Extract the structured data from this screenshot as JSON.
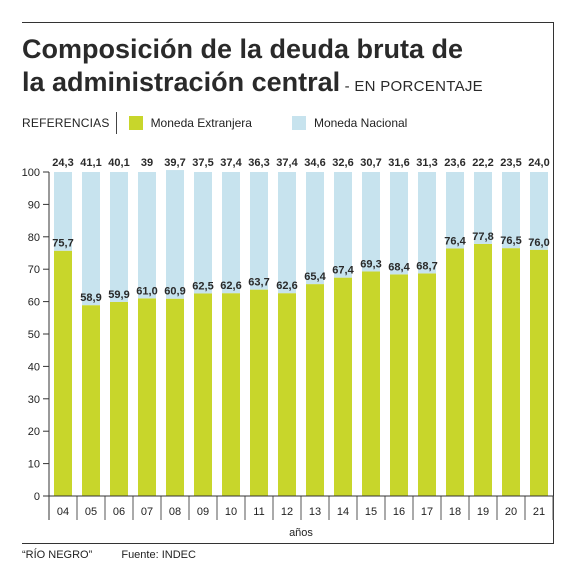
{
  "header": {
    "title_line1": "Composición de la deuda bruta de",
    "title_line2": "la administración central",
    "title_suffix": " - EN PORCENTAJE"
  },
  "legend": {
    "label": "REFERENCIAS",
    "items": [
      {
        "name": "Moneda Extranjera",
        "color": "#c8d62b"
      },
      {
        "name": "Moneda Nacional",
        "color": "#c7e3ee"
      }
    ]
  },
  "footer": {
    "source_outlet": "“RÍO NEGRO”",
    "source": "Fuente: INDEC"
  },
  "chart_data": {
    "type": "bar",
    "stacked": true,
    "title": "Composición de la deuda bruta de la administración central - EN PORCENTAJE",
    "xlabel": "años",
    "ylabel": "",
    "ylim": [
      0,
      100
    ],
    "yticks": [
      0,
      10,
      20,
      30,
      40,
      50,
      60,
      70,
      80,
      90,
      100
    ],
    "categories": [
      "04",
      "05",
      "06",
      "07",
      "08",
      "09",
      "10",
      "11",
      "12",
      "13",
      "14",
      "15",
      "16",
      "17",
      "18",
      "19",
      "20",
      "21"
    ],
    "series": [
      {
        "name": "Moneda Extranjera",
        "color": "#c8d62b",
        "values": [
          75.7,
          58.9,
          59.9,
          61.0,
          60.9,
          62.5,
          62.6,
          63.7,
          62.6,
          65.4,
          67.4,
          69.3,
          68.4,
          68.7,
          76.4,
          77.8,
          76.5,
          76.0
        ],
        "labels": [
          "75,7",
          "58,9",
          "59,9",
          "61,0",
          "60,9",
          "62,5",
          "62,6",
          "63,7",
          "62,6",
          "65,4",
          "67,4",
          "69,3",
          "68,4",
          "68,7",
          "76,4",
          "77,8",
          "76,5",
          "76,0"
        ]
      },
      {
        "name": "Moneda Nacional",
        "color": "#c7e3ee",
        "values": [
          24.3,
          41.1,
          40.1,
          39,
          39.7,
          37.5,
          37.4,
          36.3,
          37.4,
          34.6,
          32.6,
          30.7,
          31.6,
          31.3,
          23.6,
          22.2,
          23.5,
          24.0
        ],
        "labels": [
          "24,3",
          "41,1",
          "40,1",
          "39",
          "39,7",
          "37,5",
          "37,4",
          "36,3",
          "37,4",
          "34,6",
          "32,6",
          "30,7",
          "31,6",
          "31,3",
          "23,6",
          "22,2",
          "23,5",
          "24,0"
        ]
      }
    ],
    "grid": false,
    "legend_position": "top-left"
  }
}
